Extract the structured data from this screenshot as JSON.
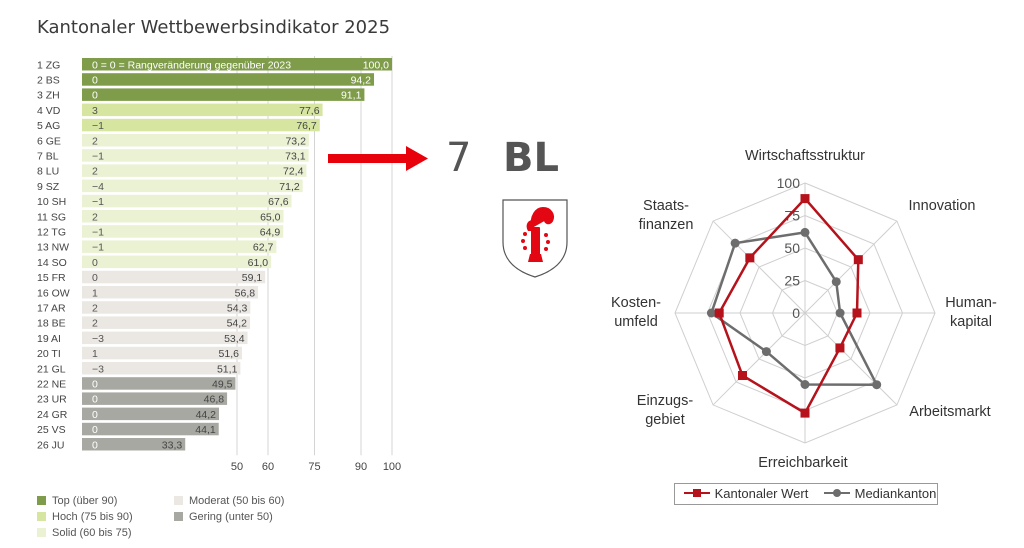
{
  "title": "Kantonaler Wettbewerbsindikator 2025",
  "highlight": {
    "rank": "7",
    "code": "BL"
  },
  "colors": {
    "top": "#7f9c4a",
    "hoch": "#d6e5a0",
    "solid": "#eaf2d3",
    "moderat": "#ebe8e4",
    "gering": "#a8a8a2",
    "arrow": "#e8000b",
    "kanton": "#b5121b",
    "median": "#6d6d6d"
  },
  "legend": [
    {
      "label": "Top (über 90)",
      "color": "#7f9c4a"
    },
    {
      "label": "Hoch (75 bis 90)",
      "color": "#d6e5a0"
    },
    {
      "label": "Solid (60 bis 75)",
      "color": "#eaf2d3"
    },
    {
      "label": "Moderat (50 bis 60)",
      "color": "#ebe8e4"
    },
    {
      "label": "Gering (unter 50)",
      "color": "#a8a8a2"
    }
  ],
  "chart_data": [
    {
      "type": "bar",
      "orientation": "horizontal",
      "x_ticks": [
        50,
        60,
        75,
        90,
        100
      ],
      "xlim": [
        0,
        100
      ],
      "grid": true,
      "rank_change_note": "0 = Rangveränderung gegenüber 2023",
      "bars": [
        {
          "label": "1 ZG",
          "change": "0",
          "value": 100.0,
          "value_label": "100,0",
          "class": "top"
        },
        {
          "label": "2 BS",
          "change": "0",
          "value": 94.2,
          "value_label": "94,2",
          "class": "top"
        },
        {
          "label": "3 ZH",
          "change": "0",
          "value": 91.1,
          "value_label": "91,1",
          "class": "top"
        },
        {
          "label": "4 VD",
          "change": "3",
          "value": 77.6,
          "value_label": "77,6",
          "class": "hoch"
        },
        {
          "label": "5 AG",
          "change": "−1",
          "value": 76.7,
          "value_label": "76,7",
          "class": "hoch"
        },
        {
          "label": "6 GE",
          "change": "2",
          "value": 73.2,
          "value_label": "73,2",
          "class": "solid"
        },
        {
          "label": "7 BL",
          "change": "−1",
          "value": 73.1,
          "value_label": "73,1",
          "class": "solid"
        },
        {
          "label": "8 LU",
          "change": "2",
          "value": 72.4,
          "value_label": "72,4",
          "class": "solid"
        },
        {
          "label": "9 SZ",
          "change": "−4",
          "value": 71.2,
          "value_label": "71,2",
          "class": "solid"
        },
        {
          "label": "10 SH",
          "change": "−1",
          "value": 67.6,
          "value_label": "67,6",
          "class": "solid"
        },
        {
          "label": "11 SG",
          "change": "2",
          "value": 65.0,
          "value_label": "65,0",
          "class": "solid"
        },
        {
          "label": "12 TG",
          "change": "−1",
          "value": 64.9,
          "value_label": "64,9",
          "class": "solid"
        },
        {
          "label": "13 NW",
          "change": "−1",
          "value": 62.7,
          "value_label": "62,7",
          "class": "solid"
        },
        {
          "label": "14 SO",
          "change": "0",
          "value": 61.0,
          "value_label": "61,0",
          "class": "solid"
        },
        {
          "label": "15 FR",
          "change": "0",
          "value": 59.1,
          "value_label": "59,1",
          "class": "moderat"
        },
        {
          "label": "16 OW",
          "change": "1",
          "value": 56.8,
          "value_label": "56,8",
          "class": "moderat"
        },
        {
          "label": "17 AR",
          "change": "2",
          "value": 54.3,
          "value_label": "54,3",
          "class": "moderat"
        },
        {
          "label": "18 BE",
          "change": "2",
          "value": 54.2,
          "value_label": "54,2",
          "class": "moderat"
        },
        {
          "label": "19 AI",
          "change": "−3",
          "value": 53.4,
          "value_label": "53,4",
          "class": "moderat"
        },
        {
          "label": "20 TI",
          "change": "1",
          "value": 51.6,
          "value_label": "51,6",
          "class": "moderat"
        },
        {
          "label": "21 GL",
          "change": "−3",
          "value": 51.1,
          "value_label": "51,1",
          "class": "moderat"
        },
        {
          "label": "22 NE",
          "change": "0",
          "value": 49.5,
          "value_label": "49,5",
          "class": "gering"
        },
        {
          "label": "23 UR",
          "change": "0",
          "value": 46.8,
          "value_label": "46,8",
          "class": "gering"
        },
        {
          "label": "24 GR",
          "change": "0",
          "value": 44.2,
          "value_label": "44,2",
          "class": "gering"
        },
        {
          "label": "25 VS",
          "change": "0",
          "value": 44.1,
          "value_label": "44,1",
          "class": "gering"
        },
        {
          "label": "26 JU",
          "change": "0",
          "value": 33.3,
          "value_label": "33,3",
          "class": "gering"
        }
      ]
    },
    {
      "type": "radar",
      "rlim": [
        0,
        100
      ],
      "r_ticks": [
        0,
        25,
        50,
        75,
        100
      ],
      "axes": [
        {
          "lines": [
            "Wirtschaftsstruktur"
          ]
        },
        {
          "lines": [
            "Innovation"
          ]
        },
        {
          "lines": [
            "Human-",
            "kapital"
          ]
        },
        {
          "lines": [
            "Arbeitsmarkt"
          ]
        },
        {
          "lines": [
            "Erreichbarkeit"
          ]
        },
        {
          "lines": [
            "Einzugs-",
            "gebiet"
          ]
        },
        {
          "lines": [
            "Kosten-",
            "umfeld"
          ]
        },
        {
          "lines": [
            "Staats-",
            "finanzen"
          ]
        }
      ],
      "series": [
        {
          "name": "Kantonaler Wert",
          "color": "#b5121b",
          "marker": "square",
          "values": [
            88,
            58,
            40,
            38,
            77,
            68,
            66,
            60
          ]
        },
        {
          "name": "Mediankanton",
          "color": "#6d6d6d",
          "marker": "circle",
          "values": [
            62,
            34,
            27,
            78,
            55,
            42,
            72,
            76
          ]
        }
      ],
      "legend_position": "bottom"
    }
  ]
}
